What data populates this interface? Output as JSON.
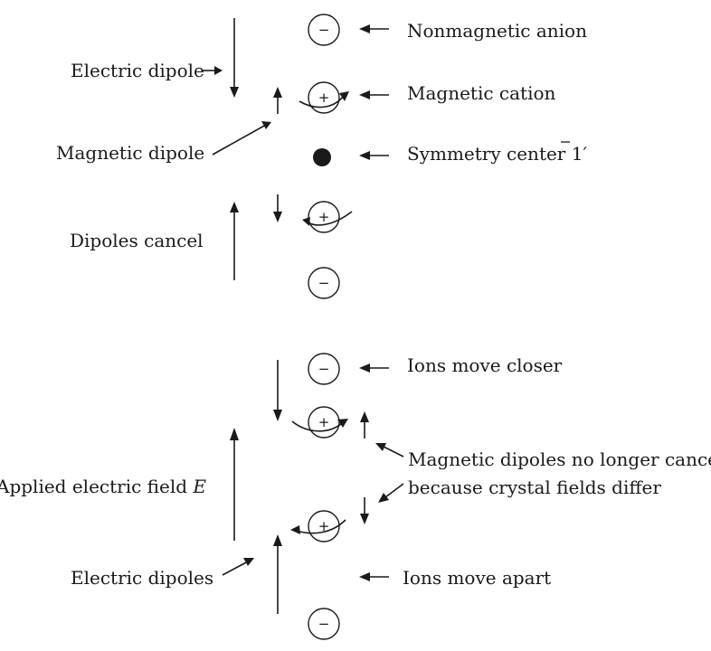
{
  "top_panel": {
    "labels": {
      "electric_dipole": "Electric dipole",
      "magnetic_dipole": "Magnetic dipole",
      "dipoles_cancel": "Dipoles cancel",
      "nonmagnetic_anion": "Nonmagnetic anion",
      "magnetic_cation": "Magnetic cation",
      "symmetry_center_prefix": "Symmetry center ",
      "symmetry_center_symbol": "1",
      "symmetry_center_suffix": "′"
    },
    "ion_signs": {
      "anion_top": "−",
      "cation_upper": "+",
      "cation_lower": "+",
      "anion_bottom": "−"
    }
  },
  "bottom_panel": {
    "labels": {
      "ions_move_closer": "Ions move closer",
      "magnetic_dipoles_line1": "Magnetic dipoles no longer cancel",
      "magnetic_dipoles_line2": "because crystal fields differ",
      "applied_field_prefix": "Applied electric field ",
      "applied_field_symbol": "E",
      "electric_dipoles": "Electric dipoles",
      "ions_move_apart": "Ions move apart"
    },
    "ion_signs": {
      "anion_top": "−",
      "cation_upper": "+",
      "cation_lower": "+",
      "anion_bottom": "−"
    }
  },
  "colors": {
    "ink": "#1a1a1a",
    "background": "#ffffff"
  }
}
